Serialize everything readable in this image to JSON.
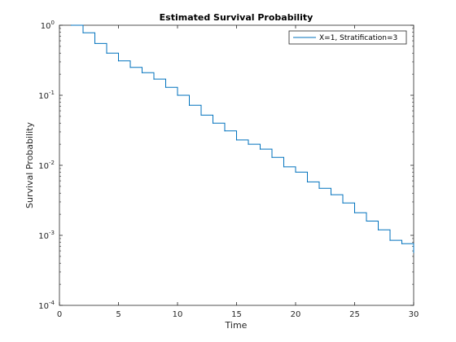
{
  "chart_data": {
    "type": "line",
    "title": "Estimated Survival Probability",
    "xlabel": "Time",
    "ylabel": "Survival Probability",
    "xlim": [
      0,
      30
    ],
    "ylim": [
      0.0001,
      1
    ],
    "yscale": "log",
    "grid": false,
    "legend_position": "top-right",
    "x_ticks": [
      0,
      5,
      10,
      15,
      20,
      25,
      30
    ],
    "y_ticks": [
      {
        "value": 0.0001,
        "base": "10",
        "exp": "-4"
      },
      {
        "value": 0.001,
        "base": "10",
        "exp": "-3"
      },
      {
        "value": 0.01,
        "base": "10",
        "exp": "-2"
      },
      {
        "value": 0.1,
        "base": "10",
        "exp": "-1"
      },
      {
        "value": 1,
        "base": "10",
        "exp": "0"
      }
    ],
    "series": [
      {
        "name": "X=1, Stratification=3",
        "color": "#0072bd",
        "step": true,
        "x": [
          1.0,
          2.0,
          3.0,
          4.0,
          5.0,
          6.0,
          7.0,
          8.0,
          9.0,
          10.0,
          11.0,
          12.0,
          13.0,
          14.0,
          15.0,
          16.0,
          17.0,
          18.0,
          19.0,
          20.0,
          21.0,
          22.0,
          23.0,
          24.0,
          25.0,
          26.0,
          27.0,
          28.0,
          29.0,
          30.0
        ],
        "y": [
          1.0,
          0.78,
          0.55,
          0.4,
          0.31,
          0.25,
          0.21,
          0.17,
          0.13,
          0.1,
          0.072,
          0.052,
          0.04,
          0.031,
          0.023,
          0.02,
          0.017,
          0.013,
          0.0095,
          0.008,
          0.0058,
          0.0047,
          0.0038,
          0.0029,
          0.0021,
          0.0016,
          0.0012,
          0.00085,
          0.00076,
          0.00057
        ]
      }
    ]
  }
}
